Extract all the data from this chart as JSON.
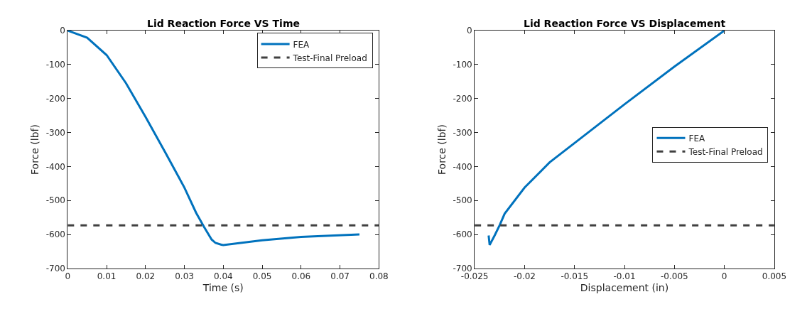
{
  "chart_data": [
    {
      "type": "line",
      "title": "Lid Reaction Force VS Time",
      "xlabel": "Time (s)",
      "ylabel": "Force (lbf)",
      "xlim": [
        0,
        0.08
      ],
      "xticks": [
        0,
        0.01,
        0.02,
        0.03,
        0.04,
        0.05,
        0.06,
        0.07,
        0.08
      ],
      "ylim": [
        -700,
        0
      ],
      "yticks": [
        -700,
        -600,
        -500,
        -400,
        -300,
        -200,
        -100,
        0
      ],
      "legend": "top right",
      "marker": "none",
      "series": [
        {
          "name": "FEA",
          "color": "#0072bd",
          "line_style": "solid",
          "x": [
            0,
            0.005,
            0.01,
            0.015,
            0.02,
            0.025,
            0.03,
            0.033,
            0.035,
            0.037,
            0.038,
            0.0395,
            0.04,
            0.05,
            0.06,
            0.075
          ],
          "values": [
            0,
            -21,
            -72,
            -155,
            -254,
            -357,
            -462,
            -536,
            -577,
            -615,
            -625,
            -630,
            -631,
            -617,
            -607,
            -600
          ]
        }
      ],
      "ref_lines": [
        {
          "axis": "y",
          "value": -573,
          "label": "Test-Final Preload",
          "color": "#404040",
          "line_style": "dashed"
        }
      ]
    },
    {
      "type": "line",
      "title": "Lid Reaction Force VS Displacement",
      "xlabel": "Displacement (in)",
      "ylabel": "Force (lbf)",
      "xlim": [
        -0.025,
        0.005
      ],
      "xticks": [
        -0.025,
        -0.02,
        -0.015,
        -0.01,
        -0.005,
        0,
        0.005
      ],
      "ylim": [
        -700,
        0
      ],
      "yticks": [
        -700,
        -600,
        -500,
        -400,
        -300,
        -200,
        -100,
        0
      ],
      "legend": "right",
      "marker": "none",
      "series": [
        {
          "name": "FEA",
          "color": "#0072bd",
          "line_style": "solid",
          "x": [
            0,
            -0.005,
            -0.01,
            -0.0125,
            -0.015,
            -0.0175,
            -0.02,
            -0.022,
            -0.0225,
            -0.023,
            -0.0235,
            -0.0236
          ],
          "values": [
            0,
            -106,
            -217,
            -274,
            -331,
            -388,
            -462,
            -539,
            -573,
            -603,
            -631,
            -603
          ]
        }
      ],
      "ref_lines": [
        {
          "axis": "y",
          "value": -573,
          "label": "Test-Final Preload",
          "color": "#404040",
          "line_style": "dashed"
        }
      ]
    }
  ]
}
